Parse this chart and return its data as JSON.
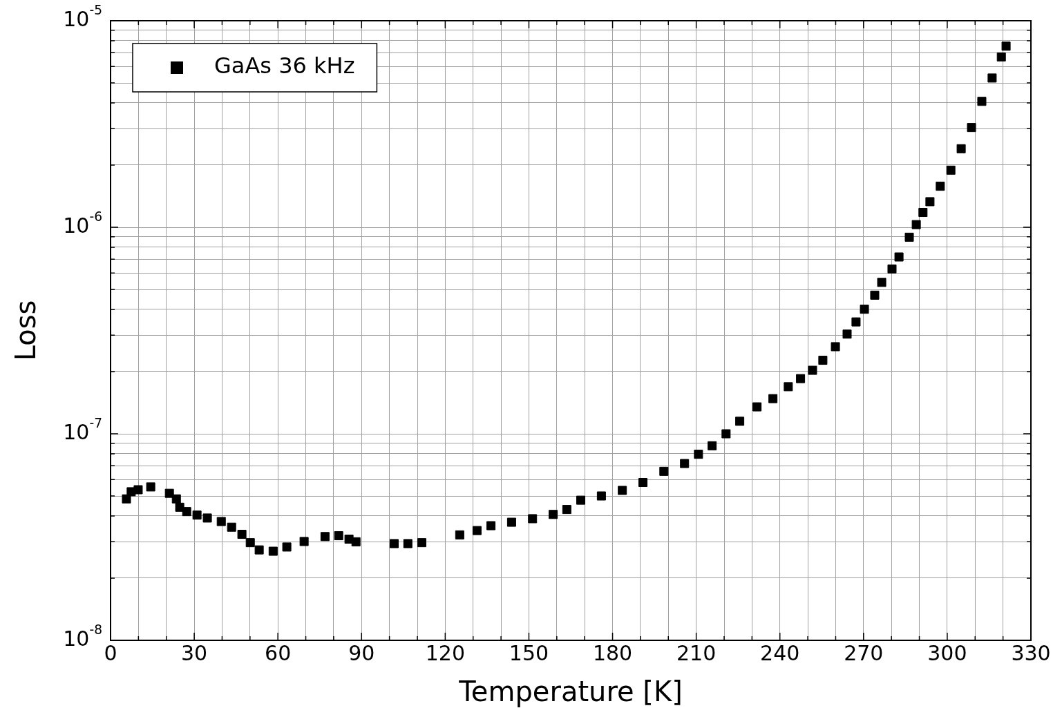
{
  "chart_data": {
    "type": "scatter",
    "xlabel": "Temperature [K]",
    "ylabel": "Loss",
    "log": "y",
    "grid": true,
    "legend": "top left",
    "marker": "square",
    "xlim": [
      0,
      330
    ],
    "xticks": [
      0,
      {
        "value": 10,
        "label": null
      },
      {
        "value": 20,
        "label": null
      },
      30,
      {
        "value": 40,
        "label": null
      },
      {
        "value": 50,
        "label": null
      },
      60,
      {
        "value": 70,
        "label": null
      },
      {
        "value": 80,
        "label": null
      },
      90,
      {
        "value": 100,
        "label": null
      },
      {
        "value": 110,
        "label": null
      },
      120,
      {
        "value": 130,
        "label": null
      },
      {
        "value": 140,
        "label": null
      },
      150,
      {
        "value": 160,
        "label": null
      },
      {
        "value": 170,
        "label": null
      },
      180,
      {
        "value": 190,
        "label": null
      },
      {
        "value": 200,
        "label": null
      },
      210,
      {
        "value": 220,
        "label": null
      },
      {
        "value": 230,
        "label": null
      },
      240,
      {
        "value": 250,
        "label": null
      },
      {
        "value": 260,
        "label": null
      },
      270,
      {
        "value": 280,
        "label": null
      },
      {
        "value": 290,
        "label": null
      },
      300,
      {
        "value": 310,
        "label": null
      },
      {
        "value": 320,
        "label": null
      },
      330
    ],
    "ylim": [
      1e-08,
      1e-05
    ],
    "yticks": [
      {
        "value": 1e-08,
        "label": "10$^{-8}$"
      },
      {
        "value": 2e-08,
        "label": null
      },
      {
        "value": 3e-08,
        "label": null
      },
      {
        "value": 4e-08,
        "label": null
      },
      {
        "value": 5e-08,
        "label": null
      },
      {
        "value": 6e-08,
        "label": null
      },
      {
        "value": 7e-08,
        "label": null
      },
      {
        "value": 8e-08,
        "label": null
      },
      {
        "value": 9e-08,
        "label": null
      },
      {
        "value": 1e-07,
        "label": "10$^{-7}$"
      },
      {
        "value": 2e-07,
        "label": null
      },
      {
        "value": 3e-07,
        "label": null
      },
      {
        "value": 4e-07,
        "label": null
      },
      {
        "value": 5e-07,
        "label": null
      },
      {
        "value": 6e-07,
        "label": null
      },
      {
        "value": 7e-07,
        "label": null
      },
      {
        "value": 8e-07,
        "label": null
      },
      {
        "value": 9e-07,
        "label": null
      },
      {
        "value": 1e-06,
        "label": "10$^{-6}$"
      },
      {
        "value": 2e-06,
        "label": null
      },
      {
        "value": 3e-06,
        "label": null
      },
      {
        "value": 4e-06,
        "label": null
      },
      {
        "value": 5e-06,
        "label": null
      },
      {
        "value": 6e-06,
        "label": null
      },
      {
        "value": 7e-06,
        "label": null
      },
      {
        "value": 8e-06,
        "label": null
      },
      {
        "value": 9e-06,
        "label": null
      },
      {
        "value": 1e-05,
        "label": "10$^{-5}$"
      }
    ],
    "series": [
      {
        "name": "GaAs 36 kHz",
        "color": "#000000",
        "x": [
          5.7,
          7.4,
          9.9,
          14.4,
          21.1,
          23.6,
          24.8,
          27.3,
          31,
          34.7,
          39.7,
          43.4,
          47.1,
          50.1,
          53.3,
          58.3,
          63.2,
          69.4,
          76.9,
          81.8,
          85.5,
          88,
          101.7,
          106.6,
          111.6,
          125.2,
          131.4,
          136.4,
          143.8,
          151.3,
          158.7,
          163.6,
          168.6,
          176,
          183.5,
          190.9,
          198.4,
          205.8,
          210.8,
          215.7,
          220.7,
          225.6,
          231.8,
          237.5,
          243,
          247.4,
          251.7,
          255.4,
          259.9,
          264.1,
          267.3,
          270.3,
          274,
          276.5,
          280.2,
          282.7,
          286.4,
          288.9,
          291.3,
          293.8,
          297.5,
          301.3,
          305,
          308.7,
          312.4,
          316.1,
          319.4,
          321.1
        ],
        "values": [
          4.84e-08,
          5.24e-08,
          5.36e-08,
          5.53e-08,
          5.15e-08,
          4.84e-08,
          4.41e-08,
          4.2e-08,
          4.04e-08,
          3.91e-08,
          3.76e-08,
          3.53e-08,
          3.26e-08,
          2.97e-08,
          2.74e-08,
          2.7e-08,
          2.83e-08,
          3.01e-08,
          3.18e-08,
          3.21e-08,
          3.09e-08,
          3e-08,
          2.94e-08,
          2.94e-08,
          2.97e-08,
          3.24e-08,
          3.4e-08,
          3.59e-08,
          3.73e-08,
          3.88e-08,
          4.07e-08,
          4.3e-08,
          4.77e-08,
          5e-08,
          5.32e-08,
          5.81e-08,
          6.58e-08,
          7.18e-08,
          7.96e-08,
          8.75e-08,
          1e-07,
          1.15e-07,
          1.35e-07,
          1.48e-07,
          1.69e-07,
          1.85e-07,
          2.03e-07,
          2.27e-07,
          2.64e-07,
          3.04e-07,
          3.48e-07,
          4.01e-07,
          4.69e-07,
          5.41e-07,
          6.28e-07,
          7.18e-07,
          8.95e-07,
          1.03e-06,
          1.18e-06,
          1.33e-06,
          1.58e-06,
          1.89e-06,
          2.4e-06,
          3.04e-06,
          4.07e-06,
          5.28e-06,
          6.68e-06,
          7.53e-06
        ]
      }
    ]
  }
}
